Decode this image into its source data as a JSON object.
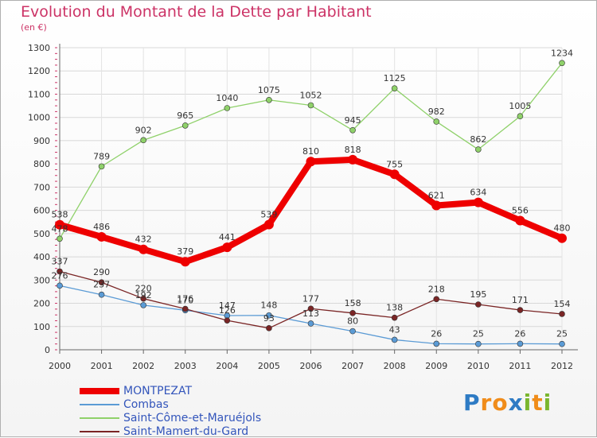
{
  "title": "Evolution du Montant de la Dette par Habitant",
  "subtitle": "(en €)",
  "logo": {
    "text": "Proxiti",
    "letters": [
      "P",
      "r",
      "o",
      "x",
      "i",
      "t",
      "i"
    ],
    "colors": [
      "#2e7bc4",
      "#f08c1a",
      "#f08c1a",
      "#2e7bc4",
      "#7ab62e",
      "#f08c1a",
      "#7ab62e"
    ]
  },
  "chart_data": {
    "type": "line",
    "categories": [
      "2000",
      "2001",
      "2002",
      "2003",
      "2004",
      "2005",
      "2006",
      "2007",
      "2008",
      "2009",
      "2010",
      "2011",
      "2012"
    ],
    "ylim": [
      0,
      1300
    ],
    "yticks": [
      "0",
      "100",
      "200",
      "300",
      "400",
      "500",
      "600",
      "700",
      "800",
      "900",
      "1000",
      "1100",
      "1200",
      "1300"
    ],
    "grid": true,
    "legend_position": "bottom",
    "series": [
      {
        "name": "MONTPEZAT",
        "color": "#ee0000",
        "width": 8,
        "values": [
          538,
          486,
          432,
          379,
          441,
          539,
          810,
          818,
          755,
          621,
          634,
          556,
          480
        ],
        "labels": [
          "538",
          "486",
          "432",
          "379",
          "441",
          "539",
          "810",
          "818",
          "755",
          "621",
          "634",
          "556",
          "480"
        ]
      },
      {
        "name": "Combas",
        "color": "#5b9bd5",
        "width": 1.3,
        "values": [
          276,
          237,
          192,
          170,
          147,
          148,
          113,
          80,
          43,
          26,
          25,
          26,
          25
        ],
        "labels": [
          "276",
          "237",
          "192",
          "170",
          "147",
          "148",
          "113",
          "80",
          "43",
          "26",
          "25",
          "26",
          "25"
        ]
      },
      {
        "name": "Saint-Côme-et-Maruéjols",
        "color": "#8fd16a",
        "width": 1.3,
        "values": [
          478,
          789,
          902,
          965,
          1040,
          1075,
          1052,
          945,
          1125,
          982,
          862,
          1005,
          1234
        ],
        "labels": [
          "478",
          "789",
          "902",
          "965",
          "1040",
          "1075",
          "1052",
          "945",
          "1125",
          "982",
          "862",
          "1005",
          "1234"
        ]
      },
      {
        "name": "Saint-Mamert-du-Gard",
        "color": "#7a2525",
        "width": 1.3,
        "values": [
          337,
          290,
          220,
          176,
          126,
          93,
          177,
          158,
          138,
          218,
          195,
          171,
          154
        ],
        "labels": [
          "337",
          "290",
          "220",
          "176",
          "126",
          "93",
          "177",
          "158",
          "138",
          "218",
          "195",
          "171",
          "154"
        ]
      }
    ]
  }
}
